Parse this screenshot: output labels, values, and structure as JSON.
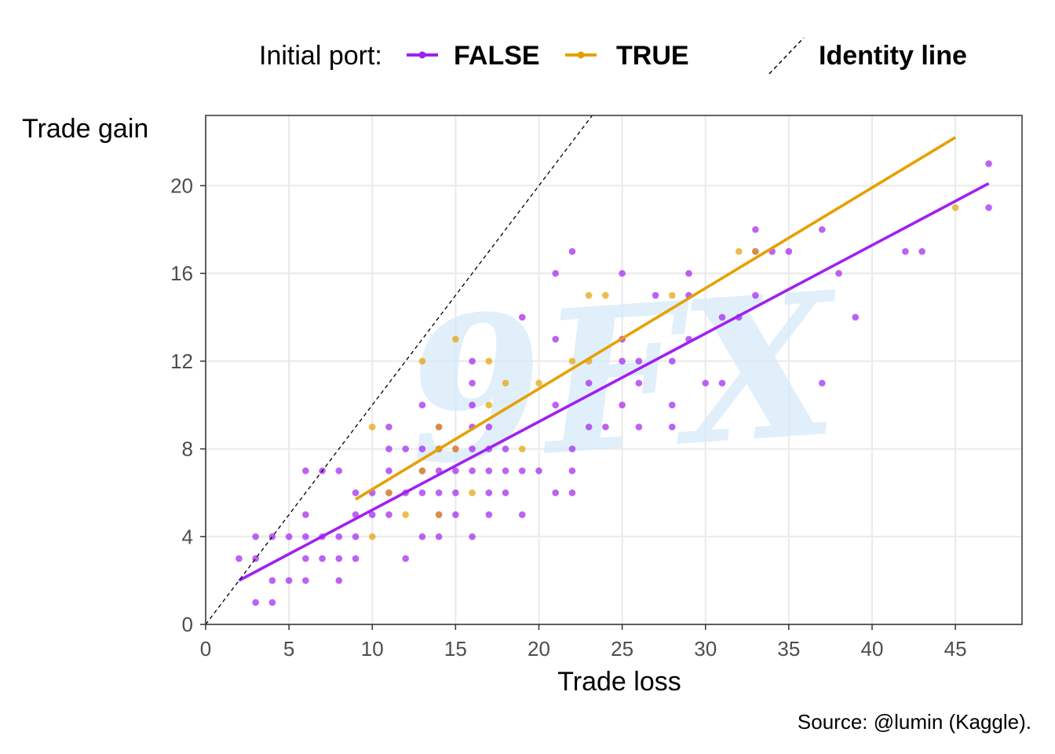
{
  "colors": {
    "false_series": "#A020F0",
    "true_series": "#E6A000",
    "grid": "#EBEBEB",
    "panel_border": "#333333",
    "identity": "#000000",
    "watermark": "#D6EAF8"
  },
  "legend": {
    "title": "Initial port:",
    "false_label": "FALSE",
    "true_label": "TRUE",
    "identity_label": "Identity line"
  },
  "caption": "Source: @lumin (Kaggle).",
  "watermark_text": "9FX",
  "chart_data": {
    "type": "scatter",
    "xlabel": "Trade loss",
    "ylabel": "Trade gain",
    "xlim": [
      0,
      49
    ],
    "ylim": [
      0,
      23.2
    ],
    "x_ticks": [
      0,
      5,
      10,
      15,
      20,
      25,
      30,
      35,
      40,
      45
    ],
    "y_ticks": [
      0,
      4,
      8,
      12,
      16,
      20
    ],
    "grid": true,
    "legend_position": "top",
    "series": [
      {
        "name": "FALSE",
        "points": [
          [
            2,
            3
          ],
          [
            3,
            4
          ],
          [
            3,
            3
          ],
          [
            3,
            1
          ],
          [
            4,
            4
          ],
          [
            4,
            2
          ],
          [
            4,
            1
          ],
          [
            5,
            4
          ],
          [
            5,
            2
          ],
          [
            6,
            7
          ],
          [
            6,
            5
          ],
          [
            6,
            4
          ],
          [
            6,
            3
          ],
          [
            6,
            2
          ],
          [
            7,
            7
          ],
          [
            7,
            4
          ],
          [
            7,
            3
          ],
          [
            8,
            7
          ],
          [
            8,
            4
          ],
          [
            8,
            3
          ],
          [
            8,
            2
          ],
          [
            9,
            6
          ],
          [
            9,
            5
          ],
          [
            9,
            4
          ],
          [
            9,
            3
          ],
          [
            10,
            6
          ],
          [
            10,
            5
          ],
          [
            11,
            9
          ],
          [
            11,
            8
          ],
          [
            11,
            7
          ],
          [
            11,
            6
          ],
          [
            11,
            5
          ],
          [
            12,
            8
          ],
          [
            12,
            6
          ],
          [
            12,
            3
          ],
          [
            13,
            10
          ],
          [
            13,
            8
          ],
          [
            13,
            7
          ],
          [
            13,
            6
          ],
          [
            13,
            4
          ],
          [
            14,
            9
          ],
          [
            14,
            8
          ],
          [
            14,
            7
          ],
          [
            14,
            6
          ],
          [
            14,
            5
          ],
          [
            14,
            4
          ],
          [
            15,
            8
          ],
          [
            15,
            7
          ],
          [
            15,
            6
          ],
          [
            15,
            5
          ],
          [
            16,
            12
          ],
          [
            16,
            11
          ],
          [
            16,
            10
          ],
          [
            16,
            9
          ],
          [
            16,
            8
          ],
          [
            16,
            7
          ],
          [
            16,
            4
          ],
          [
            17,
            9
          ],
          [
            17,
            8
          ],
          [
            17,
            7
          ],
          [
            17,
            6
          ],
          [
            17,
            5
          ],
          [
            18,
            8
          ],
          [
            18,
            7
          ],
          [
            18,
            6
          ],
          [
            19,
            14
          ],
          [
            19,
            7
          ],
          [
            19,
            5
          ],
          [
            20,
            7
          ],
          [
            21,
            16
          ],
          [
            21,
            13
          ],
          [
            21,
            10
          ],
          [
            21,
            6
          ],
          [
            22,
            17
          ],
          [
            22,
            8
          ],
          [
            22,
            7
          ],
          [
            22,
            6
          ],
          [
            23,
            11
          ],
          [
            23,
            9
          ],
          [
            24,
            9
          ],
          [
            25,
            16
          ],
          [
            25,
            13
          ],
          [
            25,
            12
          ],
          [
            25,
            10
          ],
          [
            26,
            12
          ],
          [
            26,
            11
          ],
          [
            26,
            9
          ],
          [
            27,
            15
          ],
          [
            28,
            12
          ],
          [
            28,
            10
          ],
          [
            28,
            9
          ],
          [
            29,
            16
          ],
          [
            29,
            15
          ],
          [
            29,
            13
          ],
          [
            30,
            11
          ],
          [
            31,
            14
          ],
          [
            31,
            11
          ],
          [
            32,
            14
          ],
          [
            33,
            18
          ],
          [
            33,
            15
          ],
          [
            33,
            17
          ],
          [
            34,
            17
          ],
          [
            35,
            17
          ],
          [
            37,
            18
          ],
          [
            37,
            11
          ],
          [
            38,
            16
          ],
          [
            39,
            14
          ],
          [
            42,
            17
          ],
          [
            43,
            17
          ],
          [
            47,
            21
          ],
          [
            47,
            19
          ]
        ],
        "fit": {
          "x": [
            2,
            47
          ],
          "y": [
            2.0,
            20.1
          ]
        }
      },
      {
        "name": "TRUE",
        "points": [
          [
            10,
            9
          ],
          [
            10,
            4
          ],
          [
            11,
            6
          ],
          [
            12,
            5
          ],
          [
            13,
            12
          ],
          [
            13,
            7
          ],
          [
            14,
            9
          ],
          [
            14,
            8
          ],
          [
            14,
            5
          ],
          [
            15,
            13
          ],
          [
            15,
            8
          ],
          [
            16,
            6
          ],
          [
            17,
            12
          ],
          [
            17,
            10
          ],
          [
            18,
            11
          ],
          [
            19,
            8
          ],
          [
            20,
            11
          ],
          [
            22,
            12
          ],
          [
            23,
            15
          ],
          [
            23,
            12
          ],
          [
            24,
            15
          ],
          [
            28,
            15
          ],
          [
            32,
            17
          ],
          [
            33,
            17
          ],
          [
            45,
            19
          ]
        ],
        "fit": {
          "x": [
            9,
            45
          ],
          "y": [
            5.7,
            22.2
          ]
        }
      }
    ],
    "identity_line": {
      "x": [
        0,
        23.2
      ],
      "y": [
        0,
        23.2
      ]
    }
  }
}
